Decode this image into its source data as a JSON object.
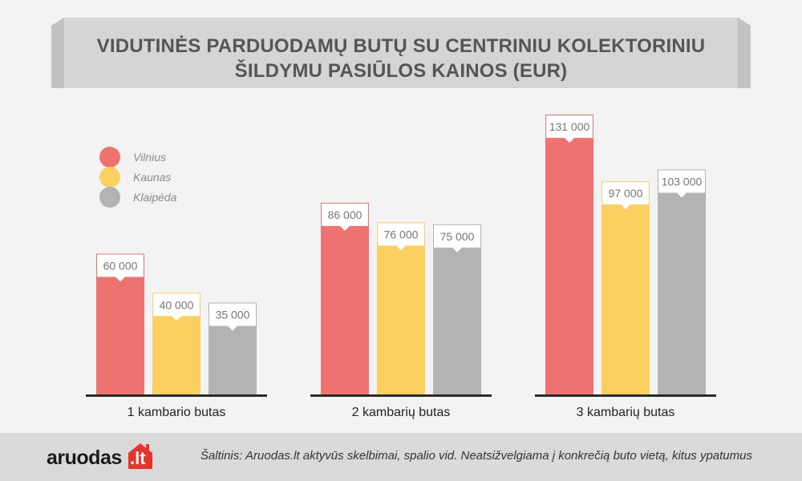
{
  "title_lines": [
    "VIDUTINĖS PARDUODAMŲ BUTŲ SU CENTRINIU KOLEKTORINIU",
    "ŠILDYMU PASIŪLOS KAINOS (EUR)"
  ],
  "chart_data": {
    "type": "bar",
    "title": "VIDUTINĖS PARDUODAMŲ BUTŲ SU CENTRINIU KOLEKTORINIU ŠILDYMU PASIŪLOS KAINOS (EUR)",
    "categories": [
      "1 kambario butas",
      "2 kambarių butas",
      "3 kambarių butas"
    ],
    "series": [
      {
        "name": "Vilnius",
        "color": "#ee7370",
        "values": [
          60000,
          86000,
          131000
        ],
        "labels": [
          "60 000",
          "86 000",
          "131 000"
        ]
      },
      {
        "name": "Kaunas",
        "color": "#fbd061",
        "values": [
          40000,
          76000,
          97000
        ],
        "labels": [
          "40 000",
          "76 000",
          "97 000"
        ]
      },
      {
        "name": "Klaipėda",
        "color": "#b3b3b3",
        "values": [
          35000,
          75000,
          103000
        ],
        "labels": [
          "35 000",
          "75 000",
          "103 000"
        ]
      }
    ],
    "ylim": [
      0,
      131000
    ],
    "grid": false,
    "legend_position": "top-left",
    "xlabel": "",
    "ylabel": ""
  },
  "footer": {
    "logo_name": "aruodas",
    "logo_tld": ".lt",
    "logo_color": "#e8352c",
    "source": "Šaltinis: Aruodas.lt aktyvūs skelbimai, spalio vid. Neatsižvelgiama į konkrečią buto vietą, kitus ypatumus"
  }
}
